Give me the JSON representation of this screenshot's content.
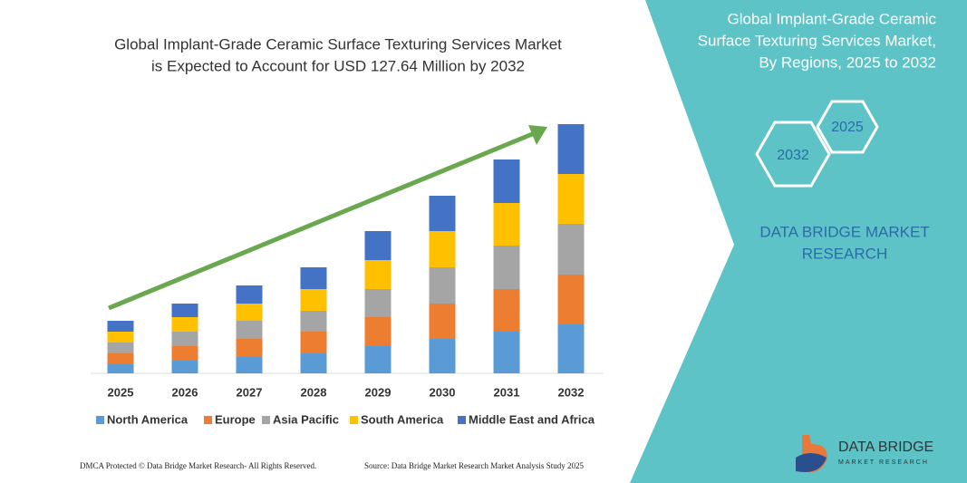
{
  "chart_data": {
    "type": "bar",
    "stacked": true,
    "title": [
      "Global Implant-Grade Ceramic Surface Texturing Services Market",
      "is Expected to Account for USD 127.64 Million by 2032"
    ],
    "categories": [
      "2025",
      "2026",
      "2027",
      "2028",
      "2029",
      "2030",
      "2031",
      "2032"
    ],
    "series": [
      {
        "name": "North America",
        "color": "#5b9bd5",
        "values": [
          10,
          14,
          18,
          22,
          30,
          38,
          46,
          54
        ]
      },
      {
        "name": "Europe",
        "color": "#ed7d31",
        "values": [
          12,
          16,
          20,
          24,
          32,
          39,
          47,
          55
        ]
      },
      {
        "name": "Asia Pacific",
        "color": "#a5a5a5",
        "values": [
          12,
          16,
          20,
          23,
          31,
          40,
          48,
          56
        ]
      },
      {
        "name": "South America",
        "color": "#ffc000",
        "values": [
          12,
          16,
          19,
          24,
          32,
          40,
          47,
          55
        ]
      },
      {
        "name": "Middle East and Africa",
        "color": "#4472c4",
        "values": [
          12,
          15,
          20,
          24,
          32,
          39,
          48,
          55
        ]
      }
    ]
  },
  "panel": {
    "title": [
      "Global Implant-Grade Ceramic",
      "Surface Texturing Services Market,",
      "By Regions, 2025 to 2032"
    ],
    "hexagons": [
      "2032",
      "2025"
    ],
    "brand": [
      "DATA BRIDGE MARKET",
      "RESEARCH"
    ]
  },
  "logo": {
    "name": "DATA BRIDGE",
    "tagline": "MARKET RESEARCH"
  },
  "footer": {
    "left": "DMCA Protected © Data Bridge Market Research- All Rights Reserved.",
    "right": "Source: Data Bridge Market Research  Market Analysis Study 2025"
  }
}
